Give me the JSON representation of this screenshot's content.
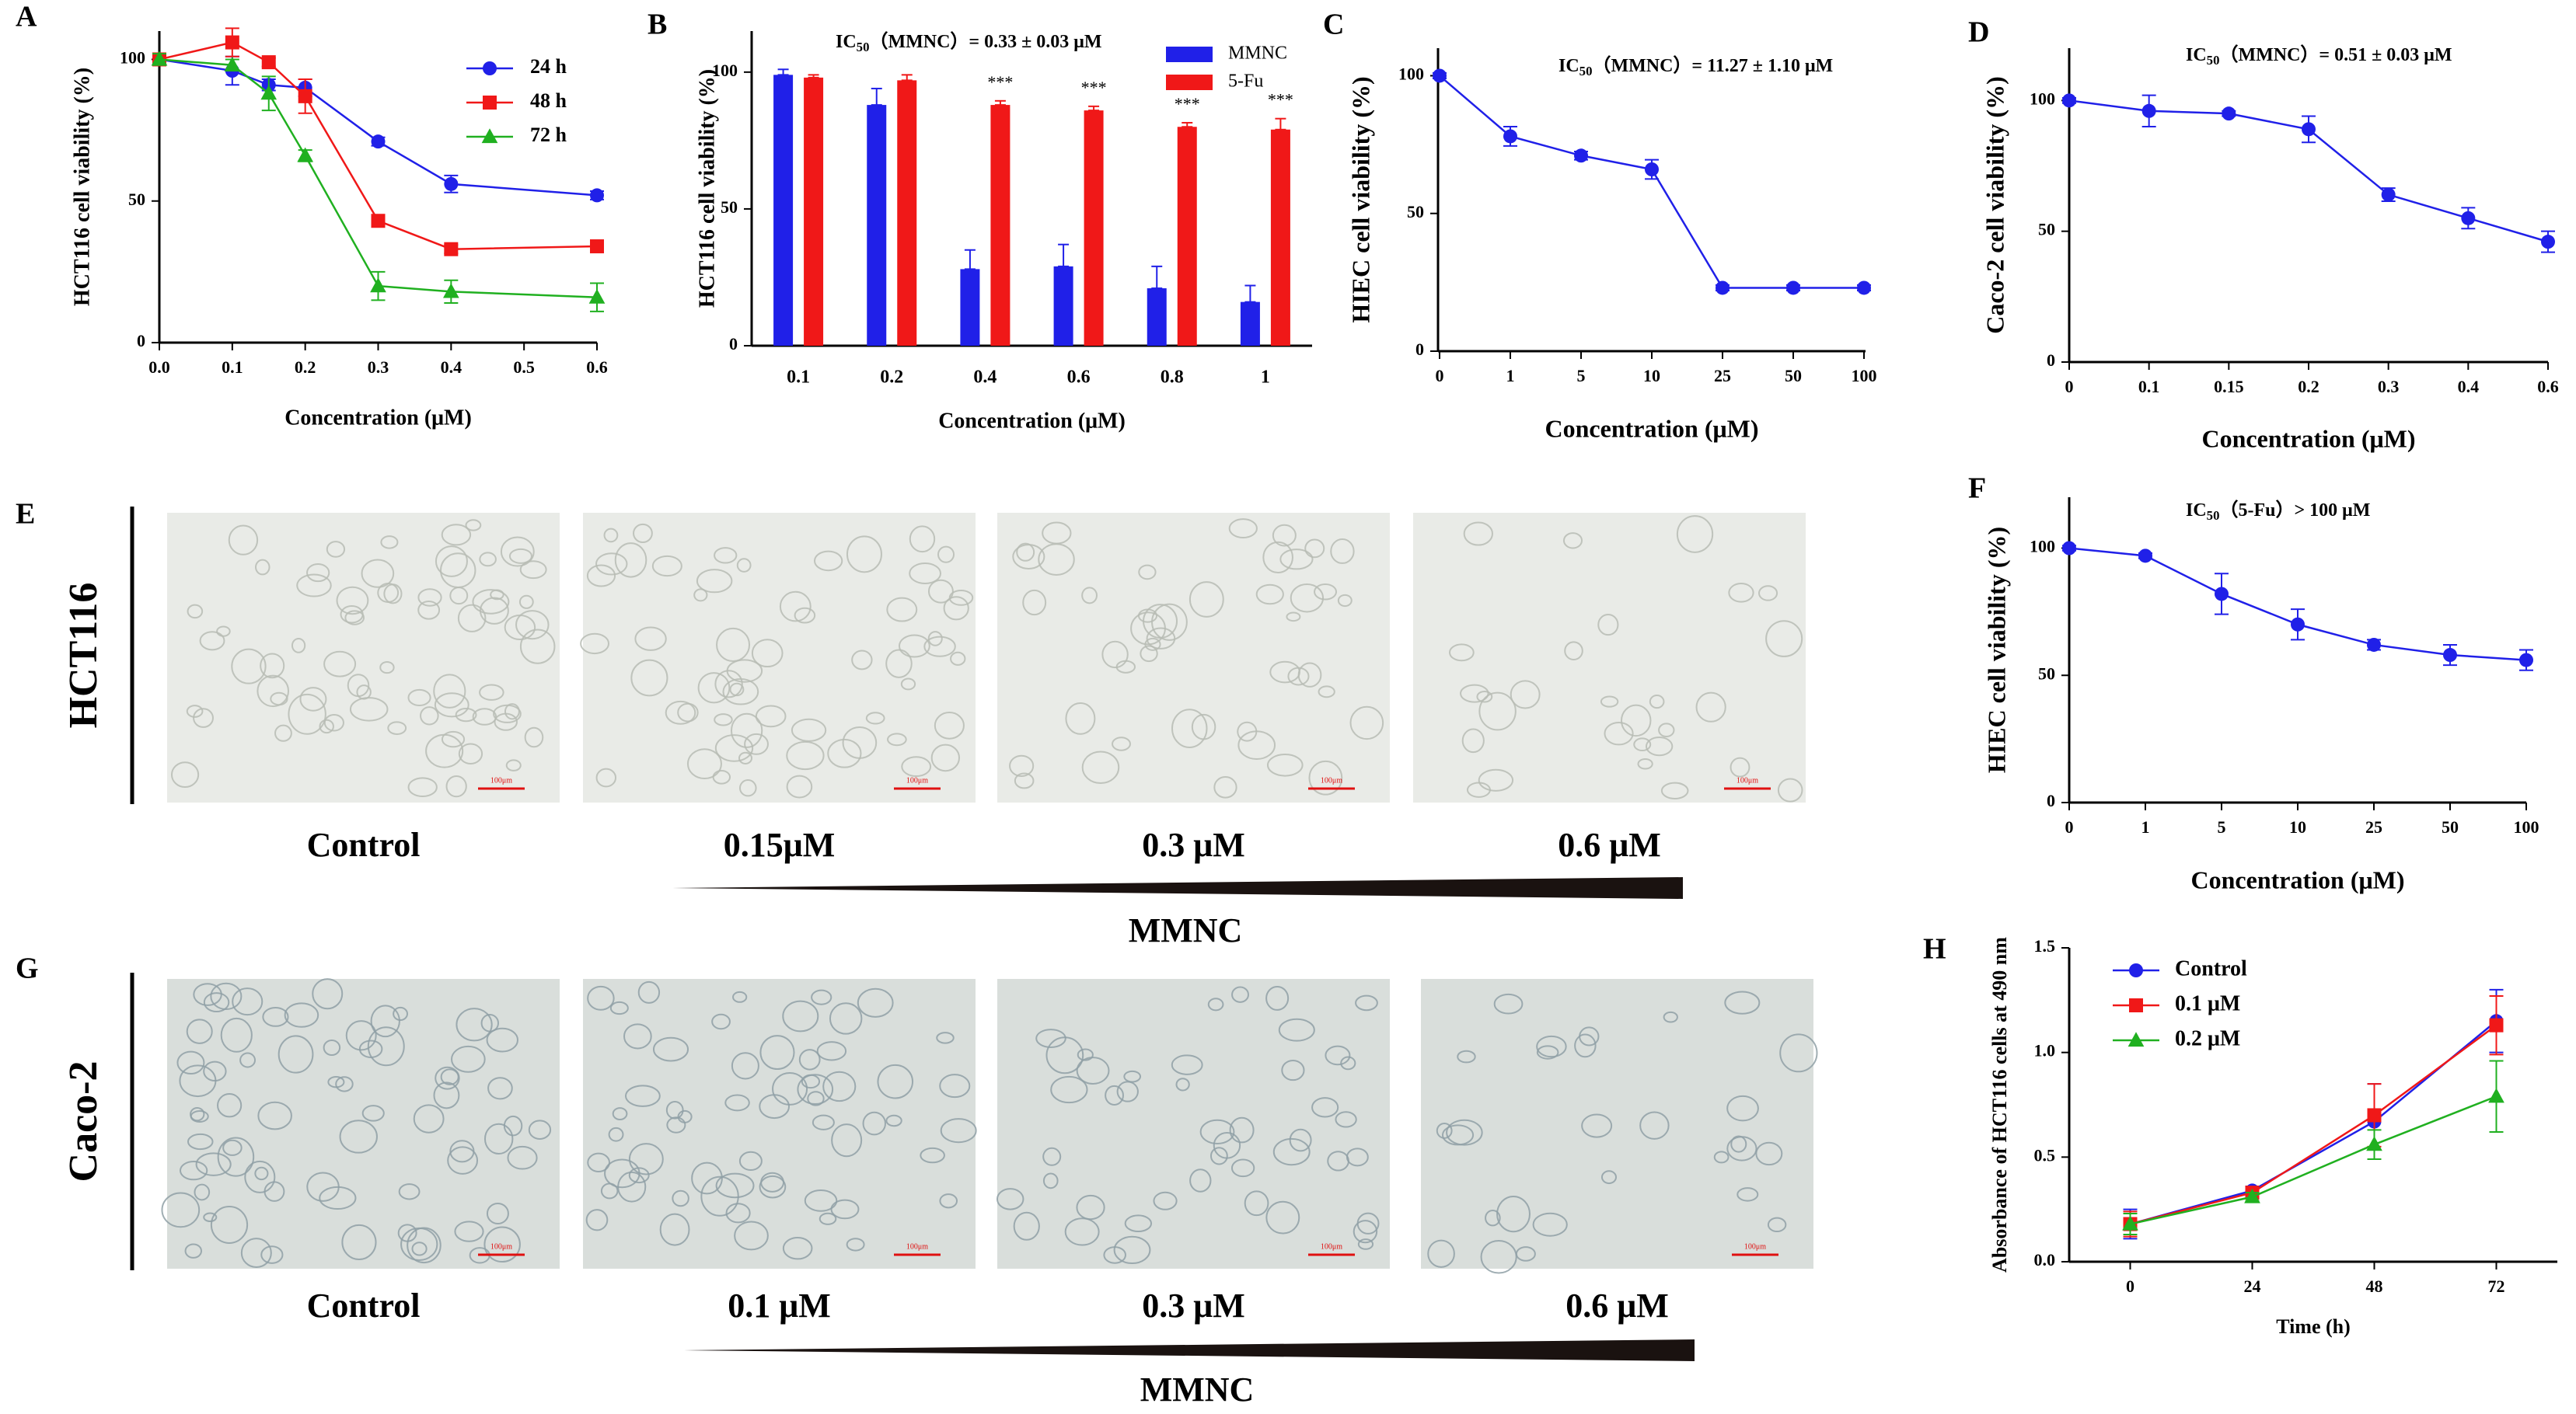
{
  "colors": {
    "blue": "#2020e8",
    "red": "#f01818",
    "green": "#20b020",
    "axis": "#000000",
    "micro_hct": "#e9ebe7",
    "micro_caco": "#d9dedb"
  },
  "chart_data": [
    {
      "panel": "A",
      "type": "line",
      "xlabel": "Concentration (μM)",
      "ylabel": "HCT116 cell viability (%)",
      "x": [
        0.0,
        0.1,
        0.15,
        0.2,
        0.3,
        0.4,
        0.6
      ],
      "xticks": [
        "0.0",
        "0.1",
        "0.2",
        "0.3",
        "0.4",
        "0.5",
        "0.6"
      ],
      "xlim": [
        0,
        0.6
      ],
      "ylim": [
        0,
        110
      ],
      "yticks": [
        "0",
        "50",
        "100"
      ],
      "legend_position": "top-right",
      "series": [
        {
          "name": "24 h",
          "values": [
            100,
            96,
            91,
            90,
            71,
            56,
            52
          ],
          "err": [
            2,
            5,
            2,
            3,
            1.5,
            3,
            1.5
          ]
        },
        {
          "name": "48 h",
          "values": [
            100,
            106,
            99,
            87,
            43,
            33,
            34
          ],
          "err": [
            2,
            5,
            1.5,
            6,
            2,
            1.5,
            1.5
          ]
        },
        {
          "name": "72 h",
          "values": [
            100,
            98,
            88,
            66,
            20,
            18,
            16
          ],
          "err": [
            2,
            2,
            6,
            2,
            5,
            4,
            5
          ]
        }
      ]
    },
    {
      "panel": "B",
      "type": "bar",
      "annotation": "IC50 (MMNC) = 0.33 ± 0.03 μM",
      "annotation_main": "IC",
      "annotation_sub": "50",
      "annotation_rest": "（MMNC）= 0.33 ± 0.03 μM",
      "xlabel": "Concentration (μM)",
      "ylabel": "HCT116 cell viability (%)",
      "categories": [
        "0.1",
        "0.2",
        "0.4",
        "0.6",
        "0.8",
        "1"
      ],
      "ylim": [
        0,
        115
      ],
      "yticks": [
        "0",
        "50",
        "100"
      ],
      "legend_position": "top-right",
      "series": [
        {
          "name": "MMNC",
          "values": [
            99,
            88,
            28,
            29,
            21,
            16
          ],
          "err": [
            2,
            6,
            7,
            8,
            8,
            6
          ]
        },
        {
          "name": "5-Fu",
          "values": [
            98,
            97,
            88,
            86,
            80,
            79
          ],
          "err": [
            1,
            2,
            1.5,
            1.5,
            1.5,
            4
          ]
        }
      ],
      "significance": [
        "",
        "",
        "***",
        "***",
        "***",
        "***"
      ]
    },
    {
      "panel": "C",
      "type": "line",
      "annotation_main": "IC",
      "annotation_sub": "50",
      "annotation_rest": "（MMNC）= 11.27 ± 1.10 μM",
      "xlabel": "Concentration (μM)",
      "ylabel": "HIEC cell viability (%)",
      "categories": [
        "0",
        "1",
        "5",
        "10",
        "25",
        "50",
        "100"
      ],
      "ylim": [
        0,
        110
      ],
      "yticks": [
        "0",
        "50",
        "100"
      ],
      "series": [
        {
          "name": "MMNC",
          "values": [
            100,
            78,
            71,
            66,
            23,
            23,
            23
          ],
          "err": [
            1,
            3.5,
            1.5,
            3.5,
            1,
            1,
            1
          ]
        }
      ]
    },
    {
      "panel": "D",
      "type": "line",
      "annotation_main": "IC",
      "annotation_sub": "50",
      "annotation_rest": "（MMNC）= 0.51 ± 0.03 μM",
      "xlabel": "Concentration (μM)",
      "ylabel": "Caco-2 cell viability (%)",
      "categories": [
        "0",
        "0.1",
        "0.15",
        "0.2",
        "0.3",
        "0.4",
        "0.6"
      ],
      "ylim": [
        0,
        120
      ],
      "yticks": [
        "0",
        "50",
        "100"
      ],
      "series": [
        {
          "name": "MMNC",
          "values": [
            100,
            96,
            95,
            89,
            64,
            55,
            46
          ],
          "err": [
            1,
            6,
            1,
            5,
            2.5,
            4,
            4
          ]
        }
      ]
    },
    {
      "panel": "F",
      "type": "line",
      "annotation_main": "IC",
      "annotation_sub": "50",
      "annotation_rest": "（5-Fu）> 100 μM",
      "xlabel": "Concentration (μM)",
      "ylabel": "HIEC cell viability (%)",
      "categories": [
        "0",
        "1",
        "5",
        "10",
        "25",
        "50",
        "100"
      ],
      "ylim": [
        0,
        120
      ],
      "yticks": [
        "0",
        "50",
        "100"
      ],
      "series": [
        {
          "name": "5-Fu",
          "values": [
            100,
            97,
            82,
            70,
            62,
            58,
            56
          ],
          "err": [
            1,
            1,
            8,
            6,
            2,
            4,
            4
          ]
        }
      ]
    },
    {
      "panel": "H",
      "type": "line",
      "xlabel": "Time (h)",
      "ylabel": "Absorbance of HCT116 cells at 490 nm",
      "x": [
        0,
        24,
        48,
        72
      ],
      "xticks": [
        "0",
        "24",
        "48",
        "72"
      ],
      "xlim": [
        -12,
        84
      ],
      "ylim": [
        0,
        1.5
      ],
      "yticks": [
        "0.0",
        "0.5",
        "1.0",
        "1.5"
      ],
      "legend_position": "top-left",
      "series": [
        {
          "name": "Control",
          "values": [
            0.18,
            0.34,
            0.67,
            1.15
          ],
          "err": [
            0.07,
            0.02,
            0.18,
            0.15
          ]
        },
        {
          "name": "0.1 μM",
          "values": [
            0.18,
            0.33,
            0.7,
            1.13
          ],
          "err": [
            0.06,
            0.02,
            0.15,
            0.14
          ]
        },
        {
          "name": "0.2 μM",
          "values": [
            0.18,
            0.31,
            0.56,
            0.79
          ],
          "err": [
            0.05,
            0.02,
            0.07,
            0.17
          ]
        }
      ]
    }
  ],
  "panel_letters": {
    "A": "A",
    "B": "B",
    "C": "C",
    "D": "D",
    "E": "E",
    "F": "F",
    "G": "G",
    "H": "H"
  },
  "panel_e": {
    "row_label": "HCT116",
    "images": [
      "Control",
      "0.15μM",
      "0.3 μM",
      "0.6 μM"
    ],
    "scale_bar": "100μm",
    "gradient_label": "MMNC"
  },
  "panel_g": {
    "row_label": "Caco-2",
    "images": [
      "Control",
      "0.1 μM",
      "0.3 μM",
      "0.6 μM"
    ],
    "scale_bar": "100μm",
    "gradient_label": "MMNC"
  }
}
